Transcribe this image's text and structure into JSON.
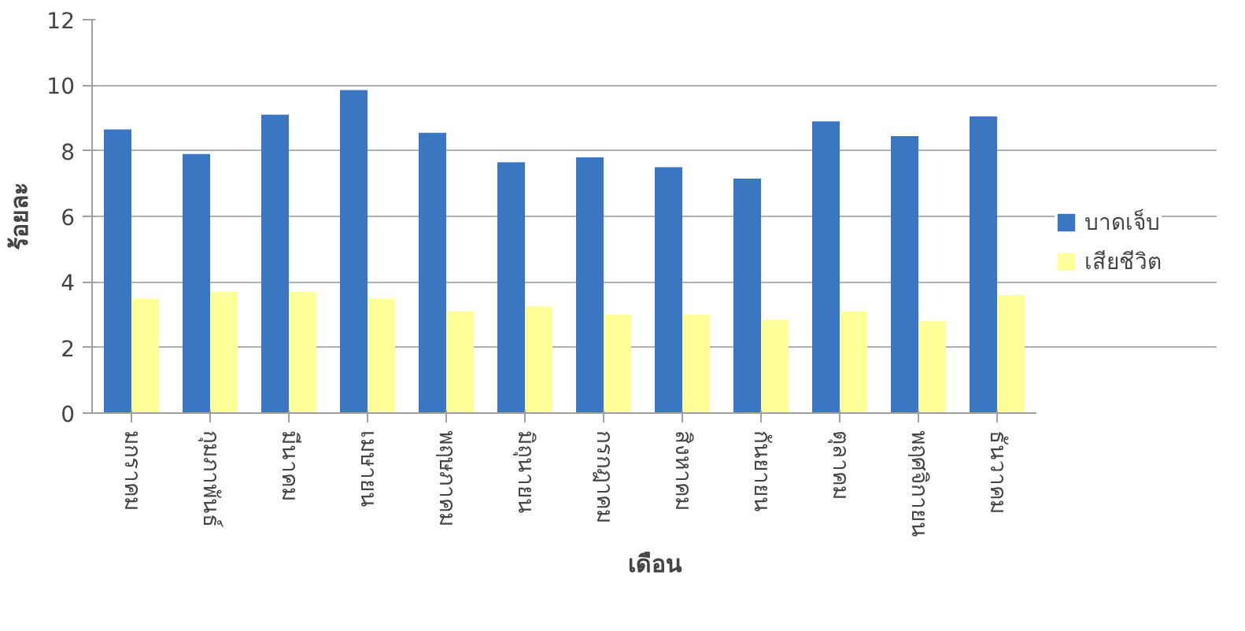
{
  "chart_data": {
    "type": "bar",
    "xlabel": "เดือน",
    "ylabel": "ร้อยละ",
    "categories": [
      "มกราคม",
      "กุมภาพันธ์",
      "มีนาคม",
      "เมษายน",
      "พฤษภาคม",
      "มิถุนายน",
      "กรกฎาคม",
      "สิงหาคม",
      "กันยายน",
      "ตุลาคม",
      "พฤศจิกายน",
      "ธันวาคม"
    ],
    "series": [
      {
        "name": "บาดเจ็บ",
        "color": "#3a76c2",
        "values": [
          8.65,
          7.9,
          9.1,
          9.85,
          8.55,
          7.65,
          7.8,
          7.5,
          7.15,
          8.9,
          8.45,
          9.05
        ]
      },
      {
        "name": "เสียชีวิต",
        "color": "#ffff99",
        "values": [
          3.5,
          3.7,
          3.7,
          3.5,
          3.1,
          3.25,
          3.0,
          3.0,
          2.85,
          3.1,
          2.8,
          3.6
        ]
      }
    ],
    "ylim": [
      0,
      12
    ],
    "yticks": [
      0,
      2,
      4,
      6,
      8,
      10,
      12
    ],
    "grid": "y",
    "legend": "right"
  }
}
